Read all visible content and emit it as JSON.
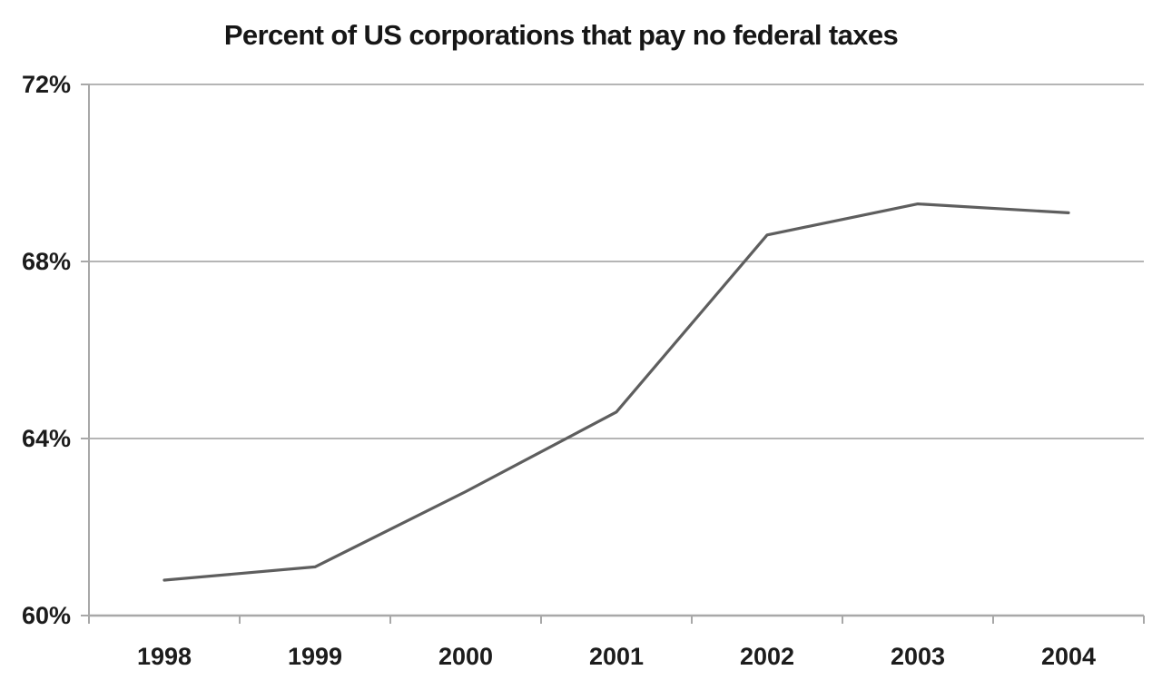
{
  "chart_data": {
    "type": "line",
    "title": "Percent of US corporations that pay no federal taxes",
    "categories": [
      "1998",
      "1999",
      "2000",
      "2001",
      "2002",
      "2003",
      "2004"
    ],
    "values": [
      60.8,
      61.1,
      62.8,
      64.6,
      68.6,
      69.3,
      69.1
    ],
    "ylim": [
      60,
      72
    ],
    "y_ticks": [
      {
        "label": "72%",
        "value": 72
      },
      {
        "label": "68%",
        "value": 68
      },
      {
        "label": "64%",
        "value": 64
      },
      {
        "label": "60%",
        "value": 60
      }
    ],
    "grid": "horizontal",
    "legend": "none",
    "colors": {
      "line": "#5e5e5e",
      "gridline": "#b5b5b5",
      "axis": "#a8a8a8",
      "text": "#1c1c1c",
      "background": "#ffffff"
    }
  }
}
